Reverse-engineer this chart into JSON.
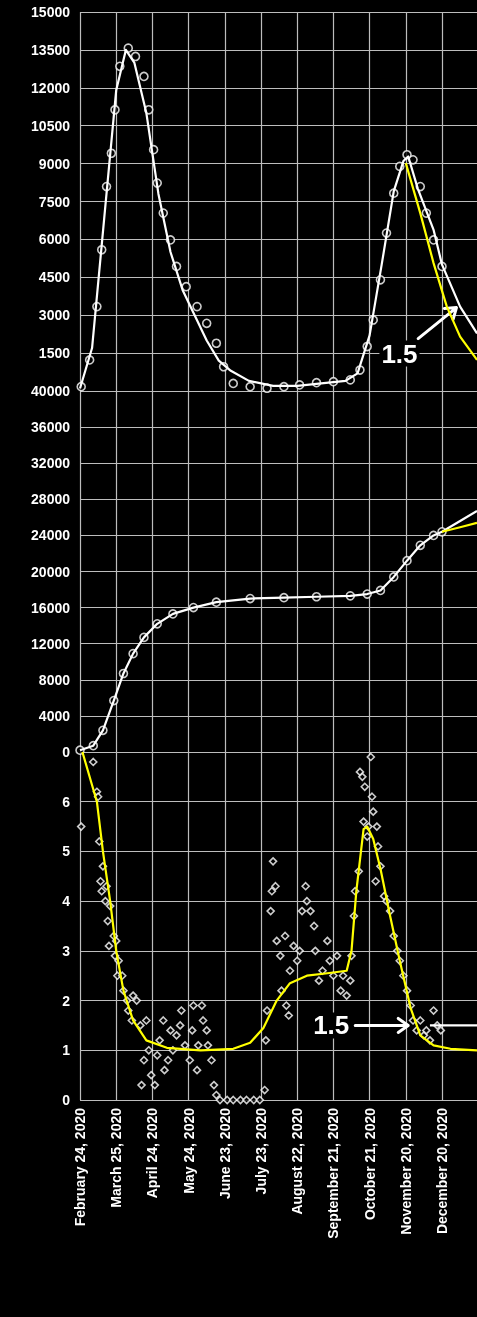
{
  "chart_data": [
    {
      "type": "line",
      "grid": true,
      "tick_labels": "y",
      "xlim": [
        "2020-02-24",
        "2021-01-18"
      ],
      "xticks": [
        {
          "value": "2020-02-24",
          "label": null
        },
        {
          "value": "2020-03-25",
          "label": null
        },
        {
          "value": "2020-04-24",
          "label": null
        },
        {
          "value": "2020-05-24",
          "label": null
        },
        {
          "value": "2020-06-23",
          "label": null
        },
        {
          "value": "2020-07-23",
          "label": null
        },
        {
          "value": "2020-08-22",
          "label": null
        },
        {
          "value": "2020-09-21",
          "label": null
        },
        {
          "value": "2020-10-21",
          "label": null
        },
        {
          "value": "2020-11-20",
          "label": null
        },
        {
          "value": "2020-12-20",
          "label": null
        }
      ],
      "ylim": [
        0,
        15000
      ],
      "yticks": [
        1500,
        3000,
        4500,
        6000,
        7500,
        9000,
        10500,
        12000,
        13500,
        15000
      ],
      "annotations": [
        {
          "text": "1.5",
          "x": "2021-01-01",
          "y": 3300
        }
      ],
      "series": [
        {
          "type": "scatter",
          "marker": "circle",
          "color": "#ffffff",
          "x": [
            "2020-02-25",
            "2020-03-03",
            "2020-03-09",
            "2020-03-13",
            "2020-03-17",
            "2020-03-21",
            "2020-03-24",
            "2020-03-28",
            "2020-04-04",
            "2020-04-10",
            "2020-04-17",
            "2020-04-21",
            "2020-04-25",
            "2020-04-28",
            "2020-05-03",
            "2020-05-09",
            "2020-05-14",
            "2020-05-22",
            "2020-05-31",
            "2020-06-08",
            "2020-06-16",
            "2020-06-22",
            "2020-06-30",
            "2020-07-14",
            "2020-07-28",
            "2020-08-11",
            "2020-08-24",
            "2020-09-07",
            "2020-09-21",
            "2020-10-05",
            "2020-10-13",
            "2020-10-19",
            "2020-10-24",
            "2020-10-30",
            "2020-11-04",
            "2020-11-10",
            "2020-11-15",
            "2020-11-21",
            "2020-11-26",
            "2020-12-02",
            "2020-12-07",
            "2020-12-13",
            "2020-12-20"
          ],
          "values": [
            170,
            1230,
            3340,
            5590,
            8090,
            9410,
            11130,
            12850,
            13570,
            13240,
            12450,
            11130,
            9550,
            8230,
            7040,
            5980,
            4930,
            4130,
            3340,
            2680,
            1890,
            960,
            300,
            170,
            110,
            170,
            240,
            330,
            370,
            440,
            830,
            1760,
            2810,
            4400,
            6250,
            7830,
            8890,
            9350,
            9150,
            8090,
            7040,
            5980,
            4930
          ]
        },
        {
          "marker": "none",
          "color": "#ffffff",
          "x": [
            "2020-02-24",
            "2020-03-05",
            "2020-03-15",
            "2020-03-25",
            "2020-04-02",
            "2020-04-09",
            "2020-04-19",
            "2020-04-29",
            "2020-05-09",
            "2020-05-19",
            "2020-05-29",
            "2020-06-08",
            "2020-06-18",
            "2020-06-28",
            "2020-07-13",
            "2020-08-02",
            "2020-08-22",
            "2020-09-11",
            "2020-10-01",
            "2020-10-11",
            "2020-10-21",
            "2020-10-31",
            "2020-11-10",
            "2020-11-18",
            "2020-11-22",
            "2020-11-30",
            "2020-12-13",
            "2020-12-20",
            "2021-01-04",
            "2021-01-18"
          ],
          "values": [
            100,
            1700,
            6800,
            11900,
            13500,
            13000,
            11000,
            7800,
            5500,
            4000,
            3000,
            2000,
            1200,
            800,
            400,
            200,
            200,
            300,
            400,
            700,
            2200,
            5000,
            7900,
            9100,
            9280,
            8000,
            6380,
            5000,
            3340,
            2280
          ]
        },
        {
          "marker": "none",
          "color": "#ffff00",
          "x": [
            "2020-11-20",
            "2020-12-02",
            "2020-12-13",
            "2020-12-24",
            "2021-01-04",
            "2021-01-18"
          ],
          "values": [
            9020,
            7040,
            5060,
            3340,
            2150,
            1230
          ]
        }
      ]
    },
    {
      "type": "line",
      "grid": true,
      "tick_labels": "y",
      "xlim": [
        "2020-02-24",
        "2021-01-18"
      ],
      "xticks": [
        {
          "value": "2020-02-24",
          "label": null
        },
        {
          "value": "2020-03-25",
          "label": null
        },
        {
          "value": "2020-04-24",
          "label": null
        },
        {
          "value": "2020-05-24",
          "label": null
        },
        {
          "value": "2020-06-23",
          "label": null
        },
        {
          "value": "2020-07-23",
          "label": null
        },
        {
          "value": "2020-08-22",
          "label": null
        },
        {
          "value": "2020-09-21",
          "label": null
        },
        {
          "value": "2020-10-21",
          "label": null
        },
        {
          "value": "2020-11-20",
          "label": null
        },
        {
          "value": "2020-12-20",
          "label": null
        }
      ],
      "ylim": [
        0,
        40000
      ],
      "yticks": [
        0,
        4000,
        8000,
        12000,
        16000,
        20000,
        24000,
        28000,
        32000,
        36000,
        40000
      ],
      "series": [
        {
          "type": "scatter",
          "marker": "circle",
          "color": "#ffffff",
          "x": [
            "2020-02-24",
            "2020-03-06",
            "2020-03-14",
            "2020-03-23",
            "2020-03-31",
            "2020-04-08",
            "2020-04-17",
            "2020-04-28",
            "2020-05-11",
            "2020-05-28",
            "2020-06-16",
            "2020-07-14",
            "2020-08-11",
            "2020-09-07",
            "2020-10-05",
            "2020-10-19",
            "2020-10-30",
            "2020-11-10",
            "2020-11-21",
            "2020-12-02",
            "2020-12-13",
            "2020-12-20"
          ],
          "values": [
            200,
            700,
            2400,
            5700,
            8700,
            10900,
            12700,
            14200,
            15300,
            16000,
            16600,
            17000,
            17100,
            17200,
            17300,
            17500,
            17900,
            19400,
            21200,
            22900,
            24000,
            24400
          ]
        },
        {
          "marker": "none",
          "color": "#ffffff",
          "x": [
            "2020-02-24",
            "2020-03-06",
            "2020-03-14",
            "2020-03-23",
            "2020-03-31",
            "2020-04-08",
            "2020-04-17",
            "2020-04-28",
            "2020-05-11",
            "2020-05-28",
            "2020-06-16",
            "2020-07-14",
            "2020-08-11",
            "2020-09-07",
            "2020-10-05",
            "2020-10-19",
            "2020-10-30",
            "2020-11-10",
            "2020-11-21",
            "2020-12-02",
            "2020-12-13",
            "2020-12-20",
            "2021-01-04",
            "2021-01-18"
          ],
          "values": [
            200,
            700,
            2400,
            5700,
            8700,
            10900,
            12700,
            14200,
            15300,
            16000,
            16600,
            17000,
            17100,
            17200,
            17300,
            17500,
            17900,
            19400,
            21200,
            22900,
            24000,
            24400,
            25600,
            26700
          ]
        },
        {
          "marker": "none",
          "color": "#ffff00",
          "x": [
            "2020-12-20",
            "2021-01-04",
            "2021-01-18"
          ],
          "values": [
            24400,
            24900,
            25400
          ]
        }
      ]
    },
    {
      "type": "line",
      "grid": true,
      "xlim": [
        "2020-02-24",
        "2021-01-18"
      ],
      "xticks": [
        {
          "value": "2020-02-24",
          "label": "February 24, 2020"
        },
        {
          "value": "2020-03-25",
          "label": "March 25, 2020"
        },
        {
          "value": "2020-04-24",
          "label": "April 24, 2020"
        },
        {
          "value": "2020-05-24",
          "label": "May 24, 2020"
        },
        {
          "value": "2020-06-23",
          "label": "June 23, 2020"
        },
        {
          "value": "2020-07-23",
          "label": "July 23, 2020"
        },
        {
          "value": "2020-08-22",
          "label": "August 22, 2020"
        },
        {
          "value": "2020-09-21",
          "label": "September 21, 2020"
        },
        {
          "value": "2020-10-21",
          "label": "October 21, 2020"
        },
        {
          "value": "2020-11-20",
          "label": "November 20, 2020"
        },
        {
          "value": "2020-12-20",
          "label": "December 20, 2020"
        }
      ],
      "ylim": [
        0,
        7
      ],
      "yticks": [
        0,
        1,
        2,
        3,
        4,
        5,
        6
      ],
      "annotations": [
        {
          "text": "1.5",
          "x": "2020-11-22",
          "y": 1.5
        }
      ],
      "series": [
        {
          "type": "scatter",
          "marker": "diamond",
          "color": "#ffffff",
          "x": [
            "2020-02-25",
            "2020-03-06",
            "2020-03-09",
            "2020-03-10",
            "2020-03-11",
            "2020-03-12",
            "2020-03-13",
            "2020-03-14",
            "2020-03-16",
            "2020-03-17",
            "2020-03-18",
            "2020-03-19",
            "2020-03-20",
            "2020-03-23",
            "2020-03-24",
            "2020-03-25",
            "2020-03-26",
            "2020-03-27",
            "2020-03-30",
            "2020-03-31",
            "2020-04-03",
            "2020-04-04",
            "2020-04-07",
            "2020-04-08",
            "2020-04-11",
            "2020-04-14",
            "2020-04-15",
            "2020-04-17",
            "2020-04-19",
            "2020-04-21",
            "2020-04-23",
            "2020-04-26",
            "2020-04-28",
            "2020-04-30",
            "2020-05-03",
            "2020-05-04",
            "2020-05-07",
            "2020-05-09",
            "2020-05-11",
            "2020-05-14",
            "2020-05-17",
            "2020-05-18",
            "2020-05-21",
            "2020-05-25",
            "2020-05-27",
            "2020-05-28",
            "2020-05-31",
            "2020-06-01",
            "2020-06-04",
            "2020-06-05",
            "2020-06-08",
            "2020-06-09",
            "2020-06-12",
            "2020-06-14",
            "2020-06-16",
            "2020-06-19",
            "2020-06-25",
            "2020-06-30",
            "2020-07-06",
            "2020-07-11",
            "2020-07-17",
            "2020-07-22",
            "2020-07-26",
            "2020-07-27",
            "2020-07-28",
            "2020-07-31",
            "2020-08-01",
            "2020-08-02",
            "2020-08-04",
            "2020-08-05",
            "2020-08-08",
            "2020-08-09",
            "2020-08-12",
            "2020-08-13",
            "2020-08-15",
            "2020-08-16",
            "2020-08-19",
            "2020-08-22",
            "2020-08-24",
            "2020-08-26",
            "2020-08-29",
            "2020-08-30",
            "2020-09-02",
            "2020-09-05",
            "2020-09-06",
            "2020-09-09",
            "2020-09-12",
            "2020-09-16",
            "2020-09-18",
            "2020-09-21",
            "2020-09-24",
            "2020-09-27",
            "2020-09-29",
            "2020-10-02",
            "2020-10-05",
            "2020-10-06",
            "2020-10-08",
            "2020-10-09",
            "2020-10-12",
            "2020-10-13",
            "2020-10-15",
            "2020-10-16",
            "2020-10-17",
            "2020-10-19",
            "2020-10-20",
            "2020-10-22",
            "2020-10-23",
            "2020-10-24",
            "2020-10-26",
            "2020-10-27",
            "2020-10-28",
            "2020-10-30",
            "2020-11-02",
            "2020-11-04",
            "2020-11-07",
            "2020-11-10",
            "2020-11-13",
            "2020-11-15",
            "2020-11-18",
            "2020-11-21",
            "2020-11-24",
            "2020-11-26",
            "2020-11-29",
            "2020-12-02",
            "2020-12-05",
            "2020-12-07",
            "2020-12-10",
            "2020-12-13",
            "2020-12-16",
            "2020-12-19"
          ],
          "values": [
            5.5,
            6.8,
            6.2,
            6.1,
            5.2,
            4.4,
            4.2,
            4.7,
            4.0,
            4.3,
            3.6,
            3.1,
            3.9,
            3.3,
            2.9,
            3.2,
            2.5,
            2.8,
            2.5,
            2.2,
            2.0,
            1.8,
            1.6,
            2.1,
            2.0,
            1.5,
            0.3,
            0.8,
            1.6,
            1.0,
            0.5,
            0.3,
            0.9,
            1.2,
            1.6,
            0.6,
            0.8,
            1.4,
            1.0,
            1.3,
            1.5,
            1.8,
            1.1,
            0.8,
            1.4,
            1.9,
            0.6,
            1.1,
            1.9,
            1.6,
            1.4,
            1.1,
            0.8,
            0.3,
            0.1,
            0,
            0,
            0,
            0,
            0,
            0,
            0,
            0.2,
            1.2,
            1.8,
            3.8,
            4.2,
            4.8,
            4.3,
            3.2,
            2.9,
            2.2,
            3.3,
            1.9,
            1.7,
            2.6,
            3.1,
            2.8,
            3.0,
            3.8,
            4.3,
            4.0,
            3.8,
            3.5,
            3.0,
            2.4,
            2.6,
            3.2,
            2.8,
            2.5,
            2.9,
            2.2,
            2.5,
            2.1,
            2.4,
            2.9,
            3.7,
            4.2,
            4.6,
            6.6,
            6.5,
            5.6,
            6.3,
            5.3,
            5.5,
            6.9,
            6.1,
            5.8,
            4.4,
            5.5,
            5.1,
            4.7,
            4.1,
            4.0,
            3.8,
            3.3,
            3.0,
            2.8,
            2.5,
            2.2,
            1.9,
            1.6,
            1.4,
            1.6,
            1.3,
            1.4,
            1.2,
            1.8,
            1.5,
            1.4
          ]
        },
        {
          "marker": "none",
          "color": "#ffff00",
          "x": [
            "2020-02-26",
            "2020-03-09",
            "2020-03-14",
            "2020-03-20",
            "2020-03-25",
            "2020-03-31",
            "2020-04-08",
            "2020-04-19",
            "2020-05-06",
            "2020-06-03",
            "2020-06-30",
            "2020-07-14",
            "2020-07-25",
            "2020-08-05",
            "2020-08-16",
            "2020-08-30",
            "2020-09-16",
            "2020-10-02",
            "2020-10-06",
            "2020-10-10",
            "2020-10-16",
            "2020-10-19",
            "2020-10-24",
            "2020-10-30",
            "2020-11-07",
            "2020-11-15",
            "2020-11-24",
            "2020-12-02",
            "2020-12-13",
            "2020-12-27",
            "2021-01-18"
          ],
          "values": [
            7.0,
            6.0,
            5.0,
            4.0,
            3.0,
            2.2,
            1.6,
            1.2,
            1.05,
            1.0,
            1.03,
            1.15,
            1.45,
            2.0,
            2.35,
            2.5,
            2.55,
            2.6,
            3.0,
            4.2,
            5.45,
            5.5,
            5.25,
            4.65,
            3.7,
            2.8,
            1.85,
            1.3,
            1.1,
            1.03,
            1.0
          ]
        },
        {
          "marker": "none",
          "color": "#ffffff",
          "x": [
            "2020-12-10",
            "2021-01-18"
          ],
          "values": [
            1.5,
            1.5
          ]
        }
      ]
    }
  ]
}
